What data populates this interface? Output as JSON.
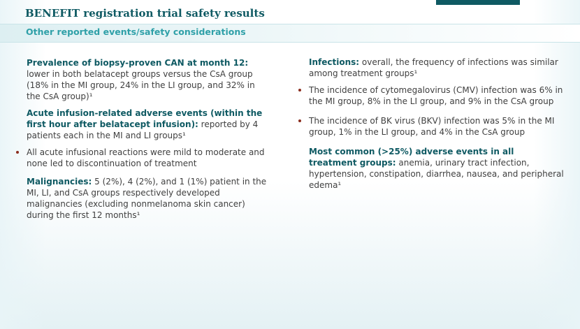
{
  "header": {
    "title": "BENEFIT registration trial safety results",
    "subtitle": "Other reported events/safety considerations"
  },
  "colors": {
    "heading": "#0f5a63",
    "subtitle": "#2fa0a8",
    "bullet": "#8b2d1e",
    "accent_bar": "#0f5a63"
  },
  "left_column": {
    "can": {
      "heading": "Prevalence of biopsy-proven CAN at month 12:",
      "text": " lower in both belatacept groups versus the CsA group (18% in the MI group, 24% in the LI group, and 32% in the CsA group)¹"
    },
    "infusion": {
      "heading": "Acute infusion-related adverse events (within the first hour after belatacept infusion):",
      "text": " reported by 4 patients each in the MI and LI groups¹"
    },
    "infusion_bullet": "All acute infusional reactions were mild to moderate and none led to discontinuation of treatment",
    "malignancies": {
      "heading": "Malignancies:",
      "text": " 5 (2%), 4 (2%), and 1 (1%) patient in the MI, LI, and CsA groups respectively developed malignancies (excluding nonmelanoma skin cancer) during the first 12 months¹"
    }
  },
  "right_column": {
    "infections": {
      "heading": "Infections:",
      "text": " overall, the frequency of infections was similar among treatment groups¹"
    },
    "bullets": [
      "The incidence of cytomegalovirus (CMV) infection was 6% in the MI group, 8% in the LI group, and 9% in the CsA group",
      "The incidence of BK virus (BKV) infection was 5% in the MI group, 1% in the LI group, and 4% in the CsA group"
    ],
    "common_ae": {
      "heading": "Most common (>25%) adverse events in all treatment groups:",
      "text": " anemia, urinary tract infection, hypertension, constipation, diarrhea, nausea, and peripheral edema¹"
    }
  }
}
